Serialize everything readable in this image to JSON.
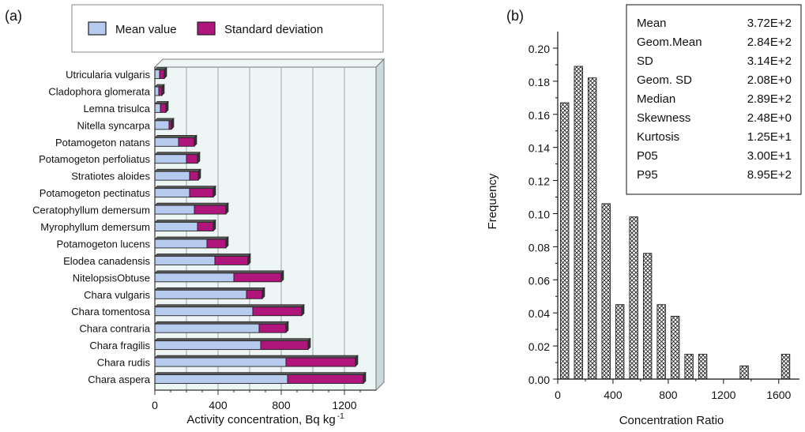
{
  "chart_data": [
    {
      "type": "bar",
      "orientation": "horizontal",
      "stacked": true,
      "panel_label": "(a)",
      "categories": [
        "Utricularia vulgaris",
        "Cladophora glomerata",
        "Lemna trisulca",
        "Nitella syncarpa",
        "Potamogeton natans",
        "Potamogeton perfoliatus",
        "Stratiotes aloides",
        "Potamogeton pectinatus",
        "Ceratophyllum demersum",
        "Myrophyllum demersum",
        "Potamogeton lucens",
        "Elodea canadensis",
        "NitelopsisObtuse",
        "Chara vulgaris",
        "Chara tomentosa",
        "Chara contraria",
        "Chara fragilis",
        "Chara rudis",
        "Chara aspera"
      ],
      "series": [
        {
          "name": "Mean value",
          "color": "#b7cbef",
          "values": [
            30,
            25,
            35,
            90,
            150,
            200,
            220,
            220,
            250,
            270,
            330,
            380,
            500,
            580,
            620,
            660,
            670,
            830,
            840
          ]
        },
        {
          "name": "Standard deviation",
          "color": "#b0157c",
          "values": [
            30,
            20,
            35,
            15,
            100,
            70,
            55,
            150,
            200,
            100,
            120,
            210,
            300,
            100,
            310,
            170,
            300,
            440,
            480
          ]
        }
      ],
      "xlabel": "Activity concentration, Bq kg",
      "xlabel_sup": "-1",
      "xlim": [
        0,
        1400
      ],
      "xticks": [
        "0",
        "400",
        "800",
        "1200"
      ],
      "grid": true,
      "legend_position": "top"
    },
    {
      "type": "bar",
      "panel_label": "(b)",
      "x": [
        50,
        150,
        250,
        350,
        450,
        550,
        650,
        750,
        850,
        950,
        1050,
        1150,
        1250,
        1350,
        1450,
        1550,
        1650
      ],
      "values": [
        0.167,
        0.189,
        0.182,
        0.106,
        0.045,
        0.098,
        0.076,
        0.045,
        0.038,
        0.015,
        0.015,
        0,
        0,
        0.008,
        0,
        0,
        0.015
      ],
      "xlabel": "Concentration Ratio",
      "ylabel": "Frequency",
      "xlim": [
        0,
        1750
      ],
      "ylim": [
        0,
        0.21
      ],
      "xticks": [
        "0",
        "400",
        "800",
        "1200",
        "1600"
      ],
      "yticks": [
        "0.00",
        "0.02",
        "0.04",
        "0.06",
        "0.08",
        "0.10",
        "0.12",
        "0.14",
        "0.16",
        "0.18",
        "0.20"
      ],
      "stats": [
        {
          "label": "Mean",
          "value": "3.72E+2"
        },
        {
          "label": "Geom.Mean",
          "value": "2.84E+2"
        },
        {
          "label": "SD",
          "value": "3.14E+2"
        },
        {
          "label": "Geom. SD",
          "value": "2.08E+0"
        },
        {
          "label": "Median",
          "value": "2.89E+2"
        },
        {
          "label": "Skewness",
          "value": "2.48E+0"
        },
        {
          "label": "Kurtosis",
          "value": "1.25E+1"
        },
        {
          "label": "P05",
          "value": "3.00E+1"
        },
        {
          "label": "P95",
          "value": "8.95E+2"
        }
      ]
    }
  ]
}
